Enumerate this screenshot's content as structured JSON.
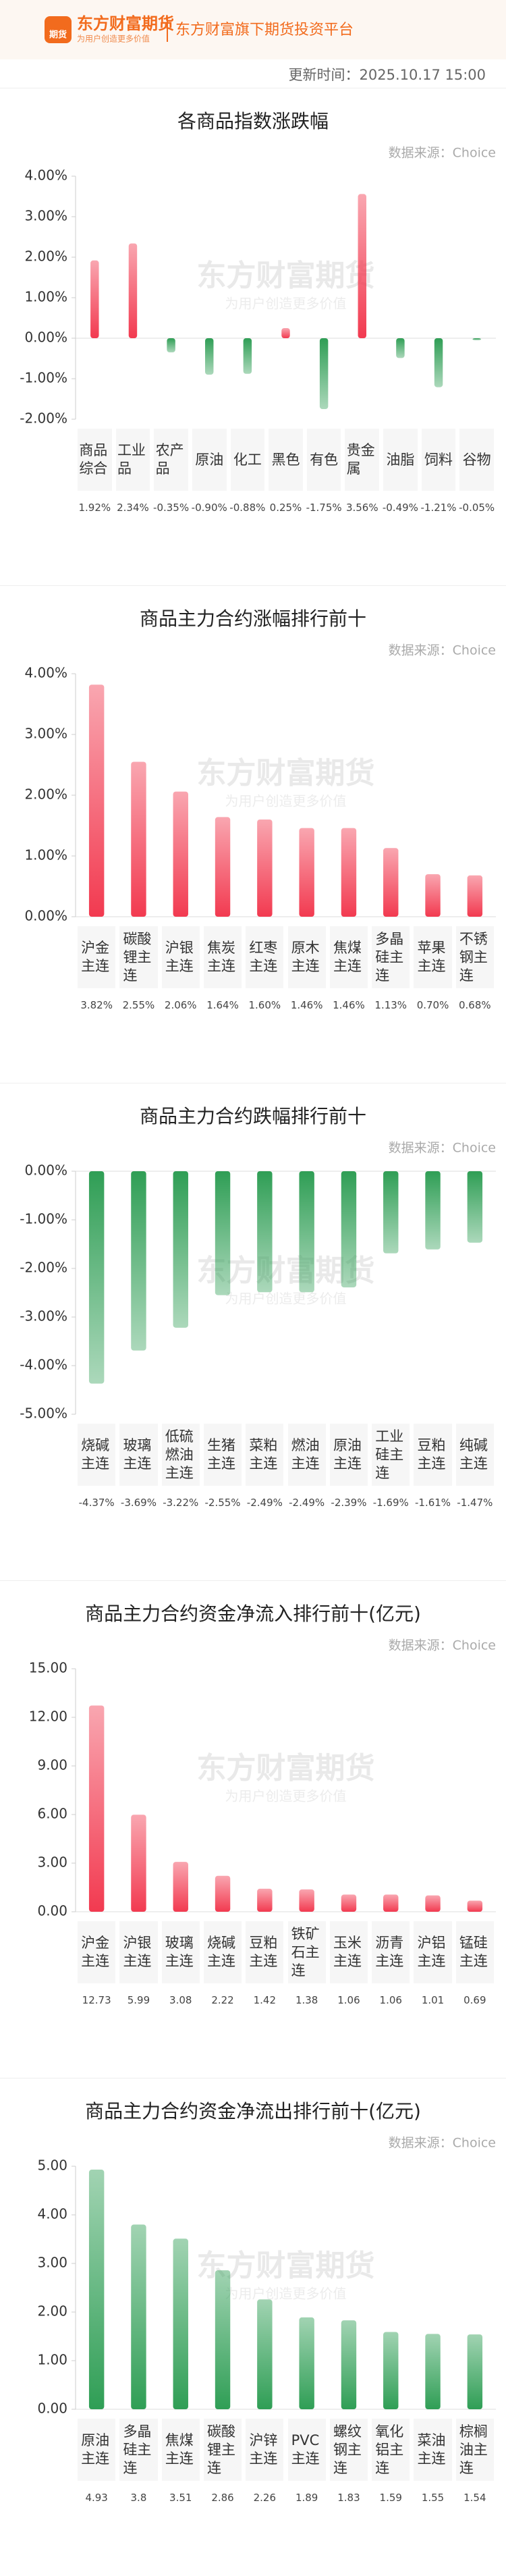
{
  "header": {
    "logo_icon": "期货",
    "brand": "东方财富期货",
    "slogan": "为用户创造更多价值",
    "platform": "东方财富旗下期货投资平台",
    "update_time": "更新时间：2025.10.17 15:00"
  },
  "watermark": {
    "brand": "东方财富期货",
    "slogan": "为用户创造更多价值"
  },
  "chart_data": [
    {
      "type": "bar",
      "title": "各商品指数涨跌幅",
      "source": "数据来源：Choice",
      "categories": [
        "商品综合",
        "工业品",
        "农产品",
        "原油",
        "化工",
        "黑色",
        "有色",
        "贵金属",
        "油脂",
        "饲料",
        "谷物"
      ],
      "values": [
        1.92,
        2.34,
        -0.35,
        -0.9,
        -0.88,
        0.25,
        -1.75,
        3.56,
        -0.49,
        -1.21,
        -0.05
      ],
      "value_labels": [
        "1.92%",
        "2.34%",
        "-0.35%",
        "-0.90%",
        "-0.88%",
        "0.25%",
        "-1.75%",
        "3.56%",
        "-0.49%",
        "-1.21%",
        "-0.05%"
      ],
      "ylim": [
        -2,
        4
      ],
      "yticks": [
        {
          "value": 4,
          "label": "4.00%"
        },
        {
          "value": 3,
          "label": "3.00%"
        },
        {
          "value": 2,
          "label": "2.00%"
        },
        {
          "value": 1,
          "label": "1.00%"
        },
        {
          "value": 0,
          "label": "0.00%"
        },
        {
          "value": -1,
          "label": "-1.00%"
        },
        {
          "value": -2,
          "label": "-2.00%"
        }
      ],
      "positive_color": "#f23a50",
      "negative_color": "#2f9e55"
    },
    {
      "type": "bar",
      "title": "商品主力合约涨幅排行前十",
      "source": "数据来源：Choice",
      "categories": [
        "沪金主连",
        "碳酸锂主连",
        "沪银主连",
        "焦炭主连",
        "红枣主连",
        "原木主连",
        "焦煤主连",
        "多晶硅主连",
        "苹果主连",
        "不锈钢主连"
      ],
      "values": [
        3.82,
        2.55,
        2.06,
        1.64,
        1.6,
        1.46,
        1.46,
        1.13,
        0.7,
        0.68
      ],
      "value_labels": [
        "3.82%",
        "2.55%",
        "2.06%",
        "1.64%",
        "1.60%",
        "1.46%",
        "1.46%",
        "1.13%",
        "0.70%",
        "0.68%"
      ],
      "ylim": [
        0,
        4
      ],
      "yticks": [
        {
          "value": 4,
          "label": "4.00%"
        },
        {
          "value": 3,
          "label": "3.00%"
        },
        {
          "value": 2,
          "label": "2.00%"
        },
        {
          "value": 1,
          "label": "1.00%"
        },
        {
          "value": 0,
          "label": "0.00%"
        }
      ],
      "positive_color": "#f23a50",
      "negative_color": "#2f9e55"
    },
    {
      "type": "bar",
      "title": "商品主力合约跌幅排行前十",
      "source": "数据来源：Choice",
      "categories": [
        "烧碱主连",
        "玻璃主连",
        "低硫燃油主连",
        "生猪主连",
        "菜粕主连",
        "燃油主连",
        "原油主连",
        "工业硅主连",
        "豆粕主连",
        "纯碱主连"
      ],
      "values": [
        -4.37,
        -3.69,
        -3.22,
        -2.55,
        -2.49,
        -2.49,
        -2.39,
        -1.69,
        -1.61,
        -1.47
      ],
      "value_labels": [
        "-4.37%",
        "-3.69%",
        "-3.22%",
        "-2.55%",
        "-2.49%",
        "-2.49%",
        "-2.39%",
        "-1.69%",
        "-1.61%",
        "-1.47%"
      ],
      "ylim": [
        -5,
        0
      ],
      "yticks": [
        {
          "value": 0,
          "label": "0.00%"
        },
        {
          "value": -1,
          "label": "-1.00%"
        },
        {
          "value": -2,
          "label": "-2.00%"
        },
        {
          "value": -3,
          "label": "-3.00%"
        },
        {
          "value": -4,
          "label": "-4.00%"
        },
        {
          "value": -5,
          "label": "-5.00%"
        }
      ],
      "positive_color": "#f23a50",
      "negative_color": "#2f9e55"
    },
    {
      "type": "bar",
      "title": "商品主力合约资金净流入排行前十(亿元)",
      "source": "数据来源：Choice",
      "categories": [
        "沪金主连",
        "沪银主连",
        "玻璃主连",
        "烧碱主连",
        "豆粕主连",
        "铁矿石主连",
        "玉米主连",
        "沥青主连",
        "沪铝主连",
        "锰硅主连"
      ],
      "values": [
        12.73,
        5.99,
        3.08,
        2.22,
        1.42,
        1.38,
        1.06,
        1.06,
        1.01,
        0.69
      ],
      "ylim": [
        0,
        15
      ],
      "yticks": [
        {
          "value": 15,
          "label": "15.00"
        },
        {
          "value": 12,
          "label": "12.00"
        },
        {
          "value": 9,
          "label": "9.00"
        },
        {
          "value": 6,
          "label": "6.00"
        },
        {
          "value": 3,
          "label": "3.00"
        },
        {
          "value": 0,
          "label": "0.00"
        }
      ],
      "positive_color": "#f23a50",
      "negative_color": "#2f9e55"
    },
    {
      "type": "bar",
      "title": "商品主力合约资金净流出排行前十(亿元)",
      "source": "数据来源：Choice",
      "categories": [
        "原油主连",
        "多晶硅主连",
        "焦煤主连",
        "碳酸锂主连",
        "沪锌主连",
        "PVC主连",
        "螺纹钢主连",
        "氧化铝主连",
        "菜油主连",
        "棕榈油主连"
      ],
      "values": [
        4.93,
        3.8,
        3.51,
        2.86,
        2.26,
        1.89,
        1.83,
        1.59,
        1.55,
        1.54
      ],
      "ylim": [
        0,
        5
      ],
      "yticks": [
        {
          "value": 5,
          "label": "5.00"
        },
        {
          "value": 4,
          "label": "4.00"
        },
        {
          "value": 3,
          "label": "3.00"
        },
        {
          "value": 2,
          "label": "2.00"
        },
        {
          "value": 1,
          "label": "1.00"
        },
        {
          "value": 0,
          "label": "0.00"
        }
      ],
      "positive_color": "#2f9e55",
      "negative_color": "#2f9e55"
    }
  ]
}
